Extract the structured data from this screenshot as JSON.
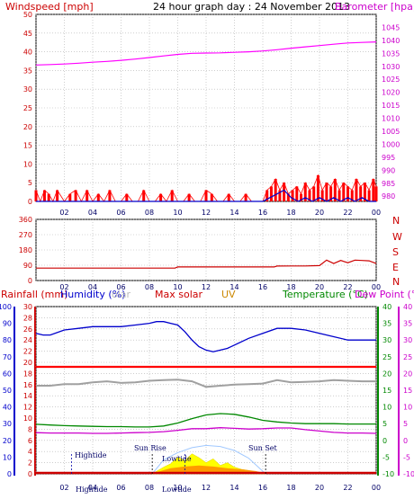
{
  "chart_data": [
    {
      "type": "line",
      "title": "24 hour graph day : 24 November 2013",
      "y_left_label": "Windspeed [mph]",
      "y_right_label": "Barometer [hpa]",
      "x_tick_labels": [
        "02",
        "04",
        "06",
        "08",
        "10",
        "12",
        "14",
        "16",
        "18",
        "20",
        "22",
        "00"
      ],
      "y_left_ticks": [
        0,
        5,
        10,
        15,
        20,
        25,
        30,
        35,
        40,
        45,
        50
      ],
      "y_right_ticks": [
        980,
        985,
        990,
        995,
        1000,
        1005,
        1010,
        1015,
        1020,
        1025,
        1030,
        1035,
        1040,
        1045
      ],
      "y_left_range": [
        0,
        50
      ],
      "y_right_range": [
        978,
        1050
      ],
      "x_range_hours": [
        0,
        24
      ],
      "grid": true,
      "series": [
        {
          "axis": "right",
          "color": "#ff00ff",
          "x": [
            0,
            1,
            2,
            3,
            4,
            5,
            6,
            7,
            8,
            9,
            10,
            11,
            12,
            13,
            14,
            15,
            16,
            17,
            18,
            19,
            20,
            21,
            22,
            23,
            24
          ],
          "values": [
            1030.5,
            1030.7,
            1030.9,
            1031.2,
            1031.6,
            1031.9,
            1032.3,
            1032.8,
            1033.4,
            1034.0,
            1034.6,
            1035.0,
            1035.1,
            1035.2,
            1035.4,
            1035.6,
            1035.9,
            1036.4,
            1037.0,
            1037.5,
            1038.0,
            1038.5,
            1039.0,
            1039.2,
            1039.4
          ]
        },
        {
          "name": "gust",
          "axis": "left",
          "color": "#ff0000",
          "x": [
            0,
            0.3,
            0.6,
            0.9,
            1.2,
            1.5,
            2.0,
            2.4,
            2.8,
            3.2,
            3.6,
            4.0,
            4.4,
            4.8,
            5.2,
            5.6,
            6.0,
            6.4,
            6.8,
            7.2,
            7.6,
            8.0,
            8.4,
            8.8,
            9.2,
            9.6,
            10.0,
            10.4,
            10.8,
            11.2,
            11.6,
            12.0,
            12.4,
            12.8,
            13.2,
            13.6,
            14.0,
            14.4,
            14.8,
            15.2,
            15.6,
            16.0,
            16.3,
            16.6,
            16.9,
            17.2,
            17.5,
            17.8,
            18.1,
            18.4,
            18.7,
            19.0,
            19.3,
            19.6,
            19.9,
            20.2,
            20.5,
            20.8,
            21.1,
            21.4,
            21.7,
            22.0,
            22.3,
            22.6,
            22.9,
            23.2,
            23.5,
            23.8,
            24.0
          ],
          "values": [
            3,
            0,
            3,
            2,
            0,
            3,
            0,
            2,
            3,
            0,
            3,
            0,
            2,
            0,
            3,
            0,
            0,
            2,
            0,
            0,
            3,
            0,
            0,
            2,
            0,
            3,
            0,
            0,
            2,
            0,
            0,
            3,
            2,
            0,
            0,
            2,
            0,
            0,
            2,
            0,
            0,
            0,
            3,
            4,
            6,
            3,
            5,
            2,
            3,
            4,
            2,
            5,
            3,
            4,
            7,
            3,
            5,
            4,
            6,
            3,
            5,
            4,
            3,
            6,
            4,
            5,
            3,
            6,
            4
          ]
        },
        {
          "name": "average",
          "axis": "left",
          "color": "#0000cc",
          "x": [
            0,
            2,
            4,
            6,
            8,
            10,
            12,
            14,
            16,
            16.5,
            17,
            17.5,
            18,
            18.5,
            19,
            19.5,
            20,
            20.5,
            21,
            21.5,
            22,
            22.5,
            23,
            23.5,
            24
          ],
          "values": [
            0,
            0,
            0,
            0,
            0,
            0,
            0,
            0,
            0,
            1,
            2,
            3,
            1,
            0,
            1,
            0,
            1,
            0,
            1,
            0,
            1,
            0,
            1,
            0,
            0
          ]
        }
      ]
    },
    {
      "type": "line",
      "y_right_labels": [
        "N",
        "W",
        "S",
        "E",
        "N"
      ],
      "y_left_ticks": [
        0,
        90,
        180,
        270,
        360
      ],
      "y_range": [
        0,
        360
      ],
      "x_range_hours": [
        0,
        24
      ],
      "x_tick_labels": [
        "02",
        "04",
        "06",
        "08",
        "10",
        "12",
        "14",
        "16",
        "18",
        "20",
        "22",
        "00"
      ],
      "grid": true,
      "series": [
        {
          "color": "#cc0000",
          "x": [
            0,
            2,
            4,
            6,
            8,
            9.8,
            10,
            12,
            14,
            16,
            16.8,
            17,
            18,
            19,
            20,
            20.5,
            21,
            21.5,
            22,
            22.5,
            23,
            23.5,
            24
          ],
          "values": [
            73,
            73,
            73,
            73,
            73,
            73,
            80,
            80,
            80,
            80,
            80,
            85,
            86,
            86,
            88,
            120,
            100,
            118,
            105,
            120,
            118,
            116,
            100
          ]
        }
      ]
    },
    {
      "type": "line",
      "headers": {
        "rainfall": "Rainfall (mm)",
        "humidity": "Humidity (%)",
        "solar_faded": "olar",
        "max_solar": "Max solar",
        "uv": "UV",
        "temperature": "Temperature (°C)",
        "dew_point": "Dew Point (°C)"
      },
      "header_colors": {
        "rainfall": "#cc0000",
        "humidity": "#0000cc",
        "solar_faded": "#bbbbbb",
        "max_solar": "#cc0000",
        "uv": "#cc8800",
        "temperature": "#008800",
        "dew_point": "#cc00cc"
      },
      "axis_humidity_ticks": [
        0,
        10,
        20,
        30,
        40,
        50,
        60,
        70,
        80,
        90,
        100
      ],
      "axis_rain_ticks": [
        0,
        2,
        4,
        6,
        8,
        10,
        12,
        14,
        16,
        18,
        20,
        22,
        24,
        26,
        28,
        30
      ],
      "axis_temp_ticks": [
        -10,
        -5,
        0,
        5,
        10,
        15,
        20,
        25,
        30,
        35,
        40
      ],
      "axis_dew_ticks": [
        -10,
        -5,
        0,
        5,
        10,
        15,
        20,
        25,
        30,
        35,
        40
      ],
      "x_tick_labels": [
        "02",
        "04",
        "06",
        "08",
        "10",
        "12",
        "14",
        "16",
        "18",
        "20",
        "22",
        "00"
      ],
      "annotations": {
        "hightide_top": "Hightide",
        "hightide_bottom": "Hightide",
        "sunrise": "Sun Rise",
        "sunset": "Sun Set",
        "lowtide_top": "Lowtide",
        "lowtide_bottom": "Lowtide"
      },
      "grid": true,
      "series": [
        {
          "name": "humidity",
          "axis": "humidity",
          "color": "#0000cc",
          "x": [
            0,
            0.5,
            1,
            2,
            3,
            4,
            5,
            6,
            7,
            8,
            8.5,
            9,
            9.5,
            10,
            10.5,
            11,
            11.5,
            12,
            12.5,
            13,
            13.5,
            14,
            15,
            16,
            17,
            18,
            19,
            20,
            21,
            22,
            23,
            24
          ],
          "values": [
            84,
            83,
            83,
            86,
            87,
            88,
            88,
            88,
            89,
            90,
            91,
            91,
            90,
            89,
            85,
            80,
            76,
            74,
            73,
            74,
            75,
            77,
            81,
            84,
            87,
            87,
            86,
            84,
            82,
            80,
            80,
            80
          ]
        },
        {
          "name": "max solar",
          "axis": "rain",
          "color": "#ff0000",
          "x": [
            0,
            2,
            4,
            6,
            8,
            10,
            12,
            14,
            16,
            18,
            20,
            22,
            24
          ],
          "values": [
            19.2,
            19.2,
            19.2,
            19.2,
            19.2,
            19.2,
            19.2,
            19.2,
            19.2,
            19.2,
            19.2,
            19.2,
            19.2
          ]
        },
        {
          "name": "solar",
          "axis": "rain",
          "color": "#a0a0a0",
          "x": [
            0,
            1,
            2,
            3,
            4,
            5,
            6,
            7,
            8,
            9,
            10,
            11,
            12,
            13,
            14,
            15,
            16,
            17,
            18,
            19,
            20,
            21,
            22,
            23,
            24
          ],
          "values": [
            15.8,
            15.8,
            16.1,
            16.1,
            16.4,
            16.6,
            16.3,
            16.4,
            16.7,
            16.8,
            16.9,
            16.6,
            15.6,
            15.8,
            16.0,
            16.1,
            16.2,
            16.8,
            16.4,
            16.5,
            16.6,
            16.8,
            16.7,
            16.6,
            16.6
          ]
        },
        {
          "name": "temperature",
          "axis": "temp",
          "color": "#008800",
          "x": [
            0,
            1,
            2,
            3,
            4,
            5,
            6,
            7,
            8,
            9,
            10,
            11,
            12,
            13,
            14,
            15,
            16,
            17,
            18,
            19,
            20,
            21,
            22,
            23,
            24
          ],
          "values": [
            4.8,
            4.6,
            4.4,
            4.3,
            4.2,
            4.1,
            4.1,
            4.0,
            4.0,
            4.3,
            5.2,
            6.5,
            7.6,
            8.0,
            7.8,
            7.0,
            6.0,
            5.5,
            5.2,
            5.0,
            5.0,
            5.0,
            4.9,
            4.9,
            4.9
          ]
        },
        {
          "name": "dew point",
          "axis": "dew",
          "color": "#cc00cc",
          "x": [
            0,
            1,
            2,
            3,
            4,
            5,
            6,
            7,
            8,
            9,
            10,
            11,
            12,
            13,
            14,
            15,
            16,
            17,
            18,
            19,
            20,
            21,
            22,
            23,
            24
          ],
          "values": [
            2.3,
            2.2,
            2.2,
            2.2,
            2.1,
            2.1,
            2.2,
            2.3,
            2.4,
            2.6,
            3.0,
            3.5,
            3.5,
            3.8,
            3.6,
            3.4,
            3.5,
            3.7,
            3.7,
            3.2,
            2.8,
            2.4,
            2.2,
            2.2,
            2.1
          ]
        },
        {
          "name": "max solar radiation envelope",
          "axis": "rain",
          "color": "#a0c8ff",
          "x": [
            8.2,
            9,
            10,
            11,
            12,
            13,
            14,
            15,
            16.2
          ],
          "values": [
            0,
            2.5,
            3.8,
            4.7,
            5.1,
            4.9,
            4.2,
            2.8,
            0
          ]
        },
        {
          "name": "solar radiation",
          "axis": "rain",
          "color": "#ffff00",
          "x": [
            8.2,
            9,
            9.5,
            10,
            10.5,
            11,
            11.5,
            12,
            12.5,
            13,
            13.5,
            14,
            14.5,
            15,
            15.5,
            16.2
          ],
          "values": [
            0,
            1.2,
            1.8,
            3.0,
            2.4,
            3.6,
            2.9,
            2.0,
            2.7,
            1.5,
            2.0,
            1.2,
            0.8,
            0.6,
            0.3,
            0
          ]
        },
        {
          "name": "UV",
          "axis": "rain",
          "color": "#ff8800",
          "x": [
            8.5,
            9.5,
            10.5,
            11.5,
            12.5,
            13.5,
            14.5,
            15.5,
            16
          ],
          "values": [
            0.3,
            1.0,
            1.3,
            1.5,
            1.3,
            1.0,
            0.8,
            0.5,
            0.2
          ]
        },
        {
          "name": "rainfall",
          "axis": "rain",
          "color": "#cc0000",
          "x": [
            0,
            24
          ],
          "values": [
            0,
            0
          ]
        }
      ]
    }
  ]
}
